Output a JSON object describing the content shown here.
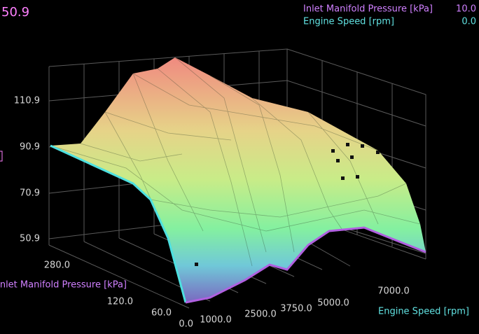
{
  "readout": "50.9",
  "cursor": [
    {
      "label": "Inlet Manifold Pressure [kPa]",
      "value": "10.0"
    },
    {
      "label": "Engine Speed [rpm]",
      "value": "0.0"
    }
  ],
  "z_axis": {
    "ticks": [
      "110.9",
      "90.9",
      "70.9",
      "50.9"
    ]
  },
  "y_axis": {
    "label": "Inlet Manifold Pressure [kPa]",
    "ticks": [
      "280.0",
      "120.0",
      "60.0",
      "0.0"
    ]
  },
  "x_axis": {
    "label": "Engine Speed [rpm]",
    "ticks": [
      "1000.0",
      "2500.0",
      "3750.0",
      "5000.0",
      "7000.0"
    ]
  }
}
